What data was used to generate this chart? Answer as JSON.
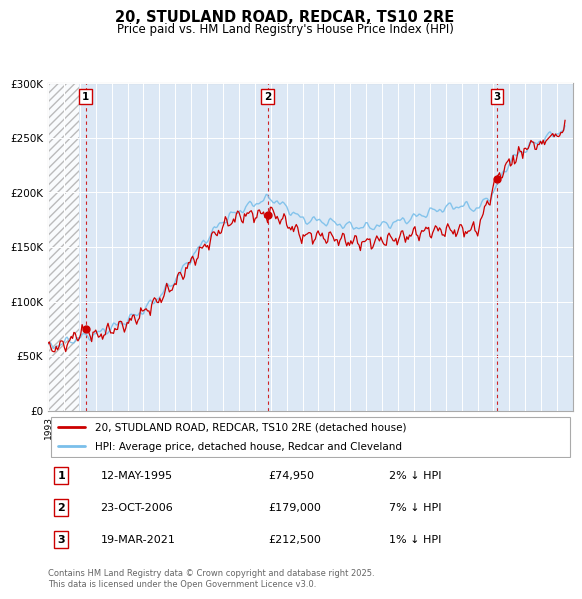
{
  "title": "20, STUDLAND ROAD, REDCAR, TS10 2RE",
  "subtitle": "Price paid vs. HM Land Registry's House Price Index (HPI)",
  "ylim": [
    0,
    300000
  ],
  "xlim_start": 1993,
  "xlim_end": 2026,
  "sale_dates_num": [
    1995.36,
    2006.81,
    2021.21
  ],
  "sale_prices": [
    74950,
    179000,
    212500
  ],
  "sale_labels": [
    "1",
    "2",
    "3"
  ],
  "hpi_color": "#7abfea",
  "price_color": "#cc0000",
  "vline_color": "#cc0000",
  "plot_bg_color": "#dce8f5",
  "legend_line1": "20, STUDLAND ROAD, REDCAR, TS10 2RE (detached house)",
  "legend_line2": "HPI: Average price, detached house, Redcar and Cleveland",
  "table_entries": [
    {
      "num": "1",
      "date": "12-MAY-1995",
      "price": "£74,950",
      "pct": "2% ↓ HPI"
    },
    {
      "num": "2",
      "date": "23-OCT-2006",
      "price": "£179,000",
      "pct": "7% ↓ HPI"
    },
    {
      "num": "3",
      "date": "19-MAR-2021",
      "price": "£212,500",
      "pct": "1% ↓ HPI"
    }
  ],
  "footnote": "Contains HM Land Registry data © Crown copyright and database right 2025.\nThis data is licensed under the Open Government Licence v3.0."
}
